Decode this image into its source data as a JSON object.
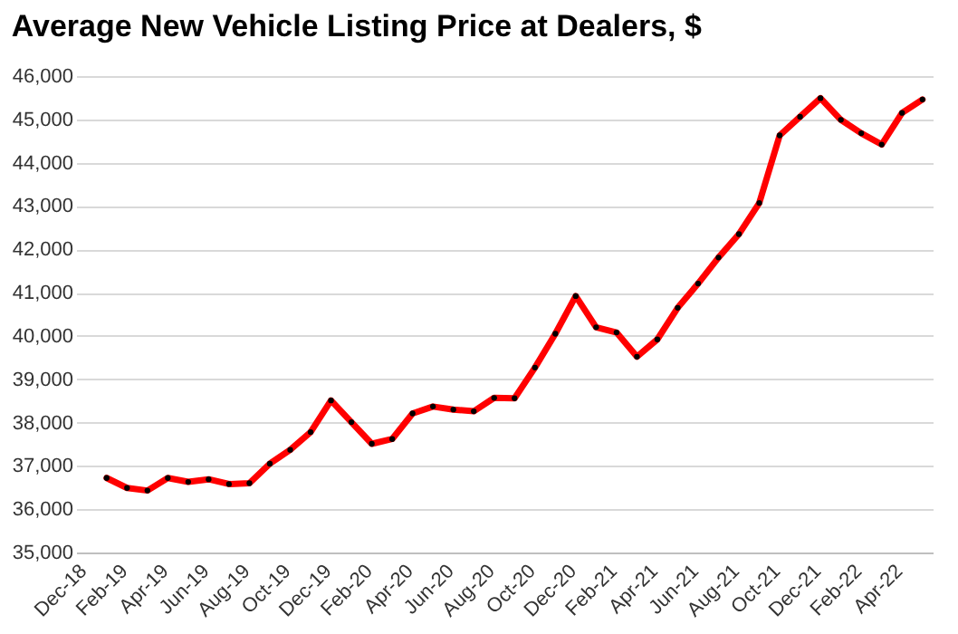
{
  "chart_data": {
    "type": "line",
    "title": "Average New Vehicle Listing Price at Dealers, $",
    "categories": [
      "Dec-18",
      null,
      "Feb-19",
      null,
      "Apr-19",
      null,
      "Jun-19",
      null,
      "Aug-19",
      null,
      "Oct-19",
      null,
      "Dec-19",
      null,
      "Feb-20",
      null,
      "Apr-20",
      null,
      "Jun-20",
      null,
      "Aug-20",
      null,
      "Oct-20",
      null,
      "Dec-20",
      null,
      "Feb-21",
      null,
      "Apr-21",
      null,
      "Jun-21",
      null,
      "Aug-21",
      null,
      "Oct-21",
      null,
      "Dec-21",
      null,
      "Feb-22",
      null,
      "Apr-22",
      null
    ],
    "series": [
      {
        "color": "#ff0000",
        "values": [
          null,
          36720,
          36490,
          36430,
          36720,
          36630,
          36690,
          36580,
          36600,
          37050,
          37370,
          37780,
          38510,
          38010,
          37510,
          37620,
          38210,
          38370,
          38300,
          38260,
          38570,
          38560,
          39270,
          40050,
          40920,
          40200,
          40080,
          39520,
          39920,
          40650,
          41210,
          41810,
          42350,
          43070,
          44630,
          45060,
          45490,
          44990,
          44680,
          44420,
          45150,
          45460
        ]
      }
    ],
    "ylim": [
      35000,
      46000
    ],
    "yticks": [
      {
        "value": 35000,
        "label": "35,000"
      },
      {
        "value": 36000,
        "label": "36,000"
      },
      {
        "value": 37000,
        "label": "37,000"
      },
      {
        "value": 38000,
        "label": "38,000"
      },
      {
        "value": 39000,
        "label": "39,000"
      },
      {
        "value": 40000,
        "label": "40,000"
      },
      {
        "value": 41000,
        "label": "41,000"
      },
      {
        "value": 42000,
        "label": "42,000"
      },
      {
        "value": 43000,
        "label": "43,000"
      },
      {
        "value": 44000,
        "label": "44,000"
      },
      {
        "value": 45000,
        "label": "45,000"
      },
      {
        "value": 46000,
        "label": "46,000"
      }
    ],
    "grid": "y",
    "marker": "circle",
    "line_style": "solid"
  }
}
